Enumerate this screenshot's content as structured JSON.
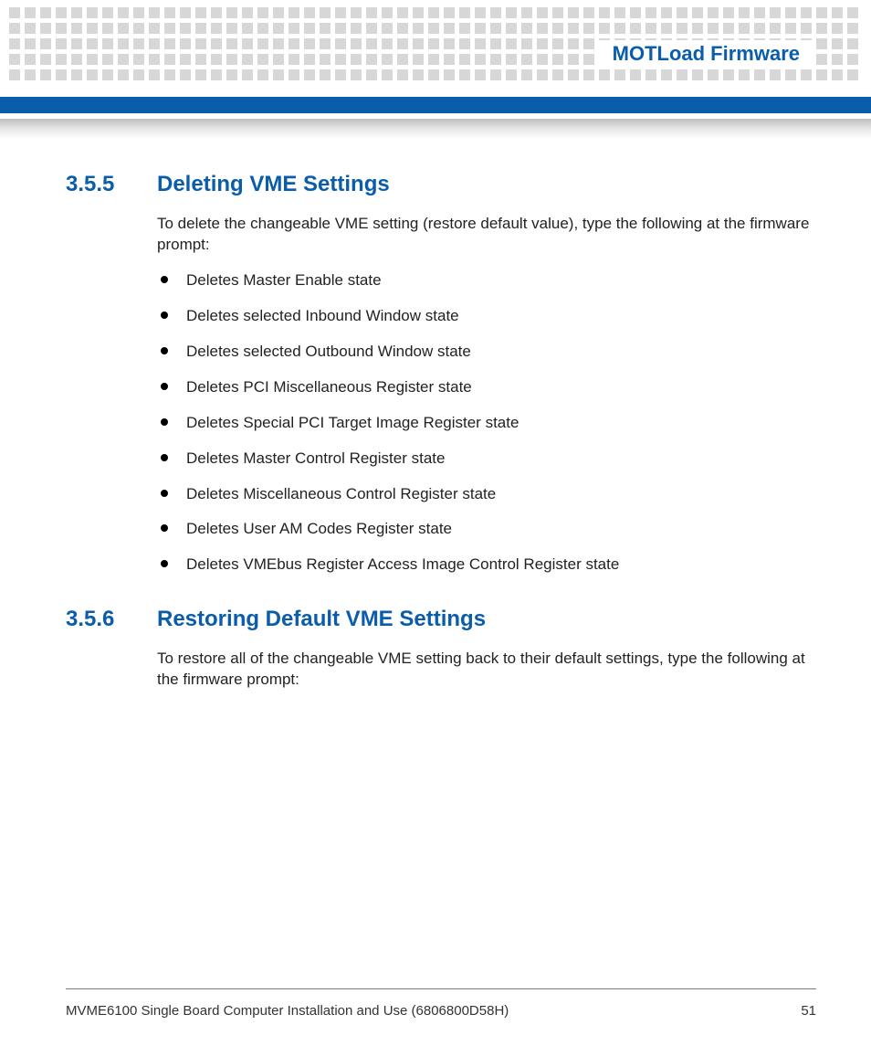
{
  "header": {
    "title": "MOTLoad Firmware"
  },
  "sections": [
    {
      "number": "3.5.5",
      "title": "Deleting VME Settings",
      "intro": "To delete the changeable VME setting (restore default value), type the following at the firmware prompt:",
      "bullets": [
        "Deletes Master Enable state",
        "Deletes selected Inbound Window state",
        "Deletes selected Outbound Window state",
        "Deletes PCI Miscellaneous Register state",
        "Deletes Special PCI Target Image Register state",
        "Deletes Master Control Register state",
        "Deletes Miscellaneous Control Register state",
        "Deletes User AM Codes Register state",
        "Deletes VMEbus Register Access Image Control Register state"
      ]
    },
    {
      "number": "3.5.6",
      "title": "Restoring Default VME Settings",
      "intro": "To restore all of the changeable VME setting back to their default settings, type the following at the firmware prompt:",
      "bullets": []
    }
  ],
  "footer": {
    "doc_title": "MVME6100 Single Board Computer Installation and Use (6806800D58H)",
    "page": "51"
  },
  "style": {
    "dot_color": "#d7d7d7",
    "brand_blue": "#0a5dab"
  }
}
